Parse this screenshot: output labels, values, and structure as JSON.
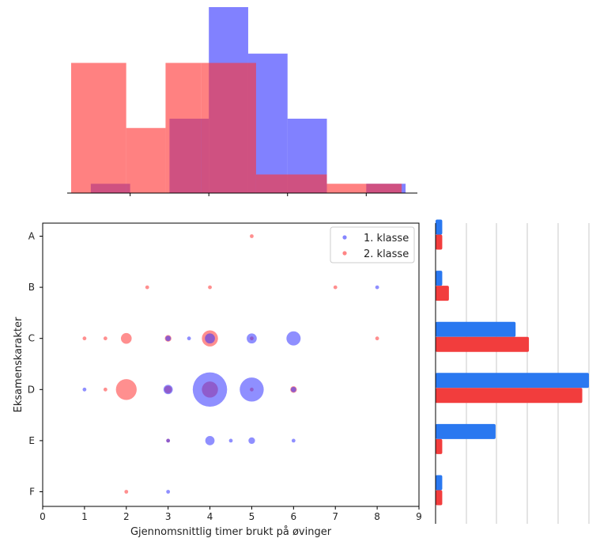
{
  "chart_data": {
    "type": "scatter",
    "xlabel": "Gjennomsnittlig timer brukt på øvinger",
    "ylabel": "Eksamenskarakter",
    "xlim": [
      0,
      9
    ],
    "x_ticks": [
      "0",
      "1",
      "2",
      "3",
      "4",
      "5",
      "6",
      "7",
      "8",
      "9"
    ],
    "categories": [
      "A",
      "B",
      "C",
      "D",
      "E",
      "F"
    ],
    "legend_position": "top-right",
    "series": [
      {
        "name": "1. klasse",
        "color": "#3333ff",
        "points": [
          {
            "x": 8,
            "y": "B",
            "count": 1
          },
          {
            "x": 3,
            "y": "C",
            "count": 2
          },
          {
            "x": 3.5,
            "y": "C",
            "count": 1
          },
          {
            "x": 4,
            "y": "C",
            "count": 7
          },
          {
            "x": 5,
            "y": "C",
            "count": 7
          },
          {
            "x": 6,
            "y": "C",
            "count": 14
          },
          {
            "x": 1,
            "y": "D",
            "count": 1
          },
          {
            "x": 3,
            "y": "D",
            "count": 6
          },
          {
            "x": 4,
            "y": "D",
            "count": 82
          },
          {
            "x": 5,
            "y": "D",
            "count": 40
          },
          {
            "x": 6,
            "y": "D",
            "count": 2
          },
          {
            "x": 3,
            "y": "E",
            "count": 1
          },
          {
            "x": 4,
            "y": "E",
            "count": 6
          },
          {
            "x": 4.5,
            "y": "E",
            "count": 1
          },
          {
            "x": 5,
            "y": "E",
            "count": 3
          },
          {
            "x": 6,
            "y": "E",
            "count": 1
          },
          {
            "x": 3,
            "y": "F",
            "count": 1
          }
        ],
        "marginal_hist_x": {
          "bin_edges": [
            1,
            2,
            3,
            4,
            5,
            6,
            7,
            8,
            9
          ],
          "heights": [
            1,
            0,
            8,
            20,
            15,
            8,
            0,
            1
          ]
        },
        "marginal_bar_y": [
          1,
          1,
          12,
          23,
          9,
          1
        ]
      },
      {
        "name": "2. klasse",
        "color": "#ff3333",
        "points": [
          {
            "x": 5,
            "y": "A",
            "count": 1
          },
          {
            "x": 2.5,
            "y": "B",
            "count": 1
          },
          {
            "x": 4,
            "y": "B",
            "count": 1
          },
          {
            "x": 7,
            "y": "B",
            "count": 1
          },
          {
            "x": 1,
            "y": "C",
            "count": 1
          },
          {
            "x": 1.5,
            "y": "C",
            "count": 1
          },
          {
            "x": 2,
            "y": "C",
            "count": 8
          },
          {
            "x": 3,
            "y": "C",
            "count": 3
          },
          {
            "x": 4,
            "y": "C",
            "count": 18
          },
          {
            "x": 5,
            "y": "C",
            "count": 1
          },
          {
            "x": 8,
            "y": "C",
            "count": 1
          },
          {
            "x": 1.5,
            "y": "D",
            "count": 1
          },
          {
            "x": 2,
            "y": "D",
            "count": 30
          },
          {
            "x": 3,
            "y": "D",
            "count": 4
          },
          {
            "x": 4,
            "y": "D",
            "count": 18
          },
          {
            "x": 5,
            "y": "D",
            "count": 1
          },
          {
            "x": 6,
            "y": "D",
            "count": 3
          },
          {
            "x": 3,
            "y": "E",
            "count": 1
          },
          {
            "x": 2,
            "y": "F",
            "count": 1
          }
        ],
        "marginal_hist_x": {
          "bin_edges": [
            0.5,
            1.9,
            2.9,
            3.8,
            5.2,
            7.0,
            8.9
          ],
          "heights": [
            14,
            7,
            14,
            14,
            2,
            1
          ]
        },
        "marginal_bar_y": [
          1,
          2,
          14,
          22,
          1,
          1
        ]
      }
    ]
  }
}
